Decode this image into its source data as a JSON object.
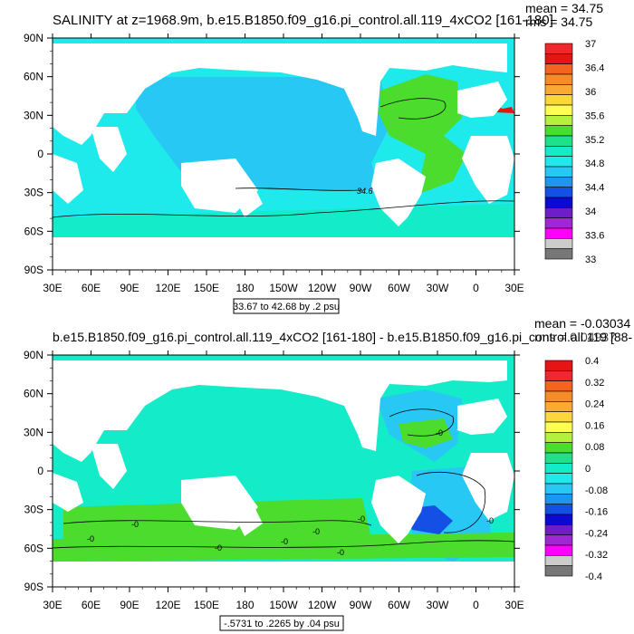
{
  "chart_data": [
    {
      "type": "heatmap",
      "title": "SALINITY at z=1968.9m, b.e15.B1850.f09_g16.pi_control.all.119_4xCO2 [161-180]",
      "stats": [
        "mean = 34.75",
        "rms = 34.75"
      ],
      "x_ticks": [
        "30E",
        "60E",
        "90E",
        "120E",
        "150E",
        "180",
        "150W",
        "120W",
        "90W",
        "60W",
        "30W",
        "0",
        "30E"
      ],
      "y_ticks": [
        "90N",
        "60N",
        "30N",
        "0",
        "30S",
        "60S",
        "90S"
      ],
      "range_label": "33.67 to 42.68 by .2 psu",
      "contour_labels": [
        "34.6"
      ],
      "colorbar": {
        "labels": [
          "37",
          "36.4",
          "36",
          "35.6",
          "35.2",
          "34.8",
          "34.4",
          "34",
          "33.6",
          "33"
        ],
        "colors": [
          "#f0282d",
          "#e61414",
          "#f5641e",
          "#f58c28",
          "#faaa32",
          "#fbd73c",
          "#ffff50",
          "#b4f03c",
          "#4bdc2d",
          "#1ee18c",
          "#14ebc8",
          "#1eeaeb",
          "#28c8f5",
          "#1e96f0",
          "#1450e6",
          "#0a0ad2",
          "#6e1ec8",
          "#a028d2",
          "#ff00ff",
          "#cccccc",
          "#777777"
        ]
      },
      "fields": {
        "ocean": "#1eeaeb",
        "pacific": "#28c8f5",
        "southern": "#14ebc8",
        "atlantic": "#4bdc2d",
        "med": "#e61414",
        "land": "#ffffff"
      }
    },
    {
      "type": "heatmap",
      "title": "b.e15.B1850.f09_g16.pi_control.all.119_4xCO2 [161-180] - b.e15.B1850.f09_g16.pi_control.all.119 [88-",
      "stats": [
        "mean = -0.03034",
        "rms = 0.04937"
      ],
      "x_ticks": [
        "30E",
        "60E",
        "90E",
        "120E",
        "150E",
        "180",
        "150W",
        "120W",
        "90W",
        "60W",
        "30W",
        "0",
        "30E"
      ],
      "y_ticks": [
        "90N",
        "60N",
        "30N",
        "0",
        "30S",
        "60S",
        "90S"
      ],
      "range_label": "-.5731 to .2265 by .04 psu",
      "contour_labels": [
        "-0",
        "-0",
        "-0",
        "-0",
        "-0",
        "-0",
        "-0",
        "-0",
        "-0"
      ],
      "colorbar": {
        "labels": [
          "0.4",
          "0.32",
          "0.24",
          "0.16",
          "0.08",
          "0",
          "-0.08",
          "-0.16",
          "-0.24",
          "-0.32",
          "-0.4"
        ],
        "colors": [
          "#e61414",
          "#f0282d",
          "#f5641e",
          "#f58c28",
          "#faaa32",
          "#fbd73c",
          "#ffff50",
          "#b4f03c",
          "#4bdc2d",
          "#1ee18c",
          "#14ebc8",
          "#1eeaeb",
          "#28c8f5",
          "#1e96f0",
          "#1450e6",
          "#0a0ad2",
          "#6e1ec8",
          "#a028d2",
          "#ff00ff",
          "#cccccc",
          "#777777"
        ]
      },
      "fields": {
        "ocean": "#14ebc8",
        "southern": "#4bdc2d",
        "atlantic": "#28c8f5",
        "arctic_atl": "#1eeaeb",
        "neg_spot": "#1450e6",
        "land": "#ffffff"
      }
    }
  ]
}
